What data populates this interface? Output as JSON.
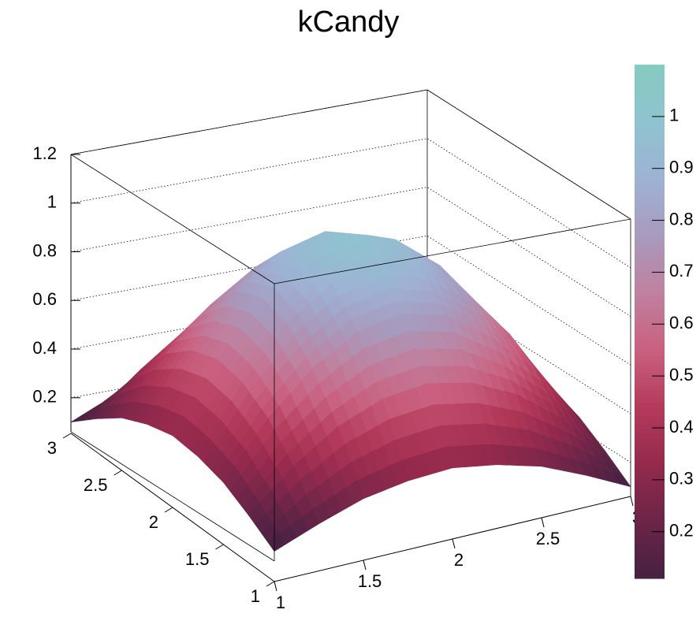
{
  "chart_data": {
    "type": "surface",
    "title": "kCandy",
    "x": [
      1,
      1.25,
      1.5,
      1.75,
      2,
      2.25,
      2.5,
      2.75,
      3
    ],
    "y": [
      1,
      1.25,
      1.5,
      1.75,
      2,
      2.25,
      2.5,
      2.75,
      3
    ],
    "z": [
      [
        0.1,
        0.18,
        0.25,
        0.29,
        0.31,
        0.29,
        0.25,
        0.18,
        0.1
      ],
      [
        0.18,
        0.35,
        0.48,
        0.56,
        0.59,
        0.56,
        0.48,
        0.35,
        0.18
      ],
      [
        0.25,
        0.48,
        0.65,
        0.77,
        0.81,
        0.77,
        0.65,
        0.48,
        0.25
      ],
      [
        0.29,
        0.56,
        0.77,
        0.9,
        0.95,
        0.9,
        0.77,
        0.56,
        0.29
      ],
      [
        0.31,
        0.59,
        0.81,
        0.95,
        1,
        0.95,
        0.81,
        0.59,
        0.31
      ],
      [
        0.29,
        0.56,
        0.77,
        0.9,
        0.95,
        0.9,
        0.77,
        0.56,
        0.29
      ],
      [
        0.25,
        0.48,
        0.65,
        0.77,
        0.81,
        0.77,
        0.65,
        0.48,
        0.25
      ],
      [
        0.18,
        0.35,
        0.48,
        0.56,
        0.59,
        0.56,
        0.48,
        0.35,
        0.18
      ],
      [
        0.1,
        0.18,
        0.25,
        0.29,
        0.31,
        0.29,
        0.25,
        0.18,
        0.1
      ]
    ],
    "xlim": [
      1,
      3
    ],
    "ylim": [
      1,
      3
    ],
    "zlim": [
      0.06,
      1.2
    ],
    "xticks": [
      1,
      1.5,
      2,
      2.5,
      3
    ],
    "yticks": [
      1,
      1.5,
      2,
      2.5,
      3
    ],
    "zticks": [
      0.2,
      0.4,
      0.6,
      0.8,
      1,
      1.2
    ],
    "color_range": [
      0.11,
      1.1
    ],
    "color_ticks": [
      0.2,
      0.3,
      0.4,
      0.5,
      0.6,
      0.7,
      0.8,
      0.9,
      1
    ],
    "palette": [
      "#452142",
      "#6b2547",
      "#942a4d",
      "#b43a5a",
      "#c9607f",
      "#c0809e",
      "#a89abd",
      "#9eb2d4",
      "#8fc3cf",
      "#86cbc0"
    ],
    "grid": true
  }
}
